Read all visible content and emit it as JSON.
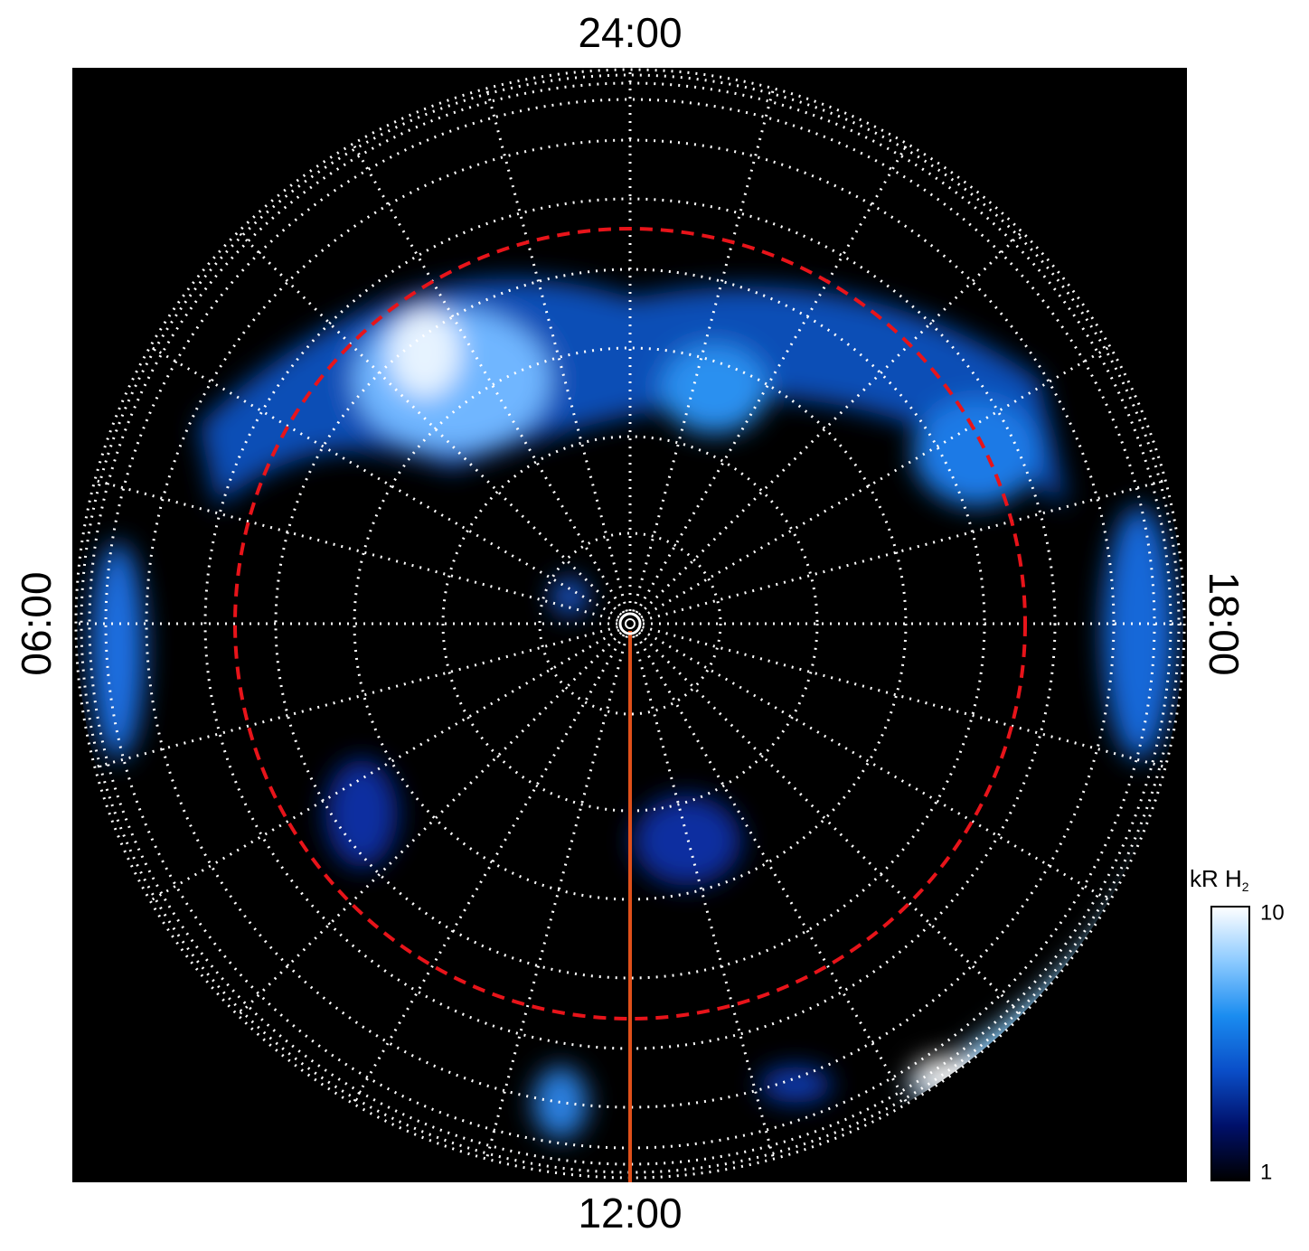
{
  "chart_data": {
    "type": "polar-image",
    "labels": {
      "top": "24:00",
      "bottom": "12:00",
      "left": "06:00",
      "right": "18:00"
    },
    "grid": true,
    "colorbar": {
      "label": "kR H",
      "label_subscript": "2",
      "lim": [
        1,
        10
      ],
      "ticks": [
        1,
        10
      ],
      "log": true,
      "colors": [
        "#000000",
        "#00106a",
        "#0a4ec8",
        "#1a8cf0",
        "#8ccaff",
        "#ffffff"
      ]
    }
  }
}
